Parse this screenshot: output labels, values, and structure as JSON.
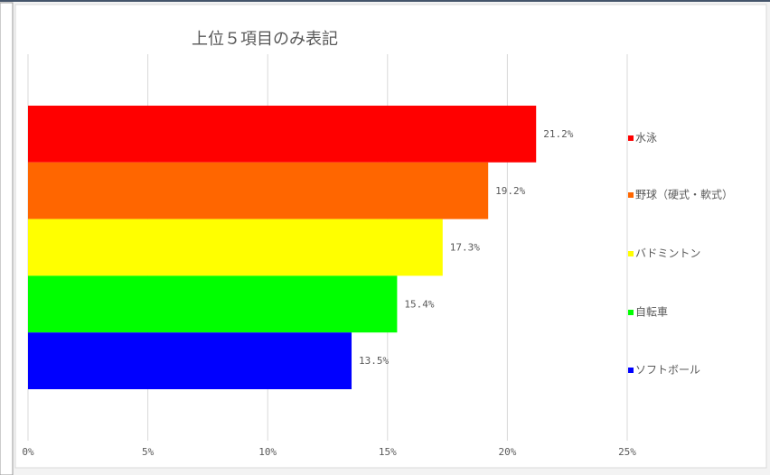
{
  "chart_data": {
    "type": "bar",
    "orientation": "horizontal",
    "title": "上位５項目のみ表記",
    "categories": [
      "水泳",
      "野球（硬式・軟式）",
      "バドミントン",
      "自転車",
      "ソフトボール"
    ],
    "values": [
      21.2,
      19.2,
      17.3,
      15.4,
      13.5
    ],
    "value_labels": [
      "21.2%",
      "19.2%",
      "17.3%",
      "15.4%",
      "13.5%"
    ],
    "colors": [
      "#ff0000",
      "#ff6600",
      "#ffff00",
      "#00ff00",
      "#0000ff"
    ],
    "xlim": [
      0,
      25
    ],
    "xticks": [
      {
        "value": 0,
        "label": "0%"
      },
      {
        "value": 5,
        "label": "5%"
      },
      {
        "value": 10,
        "label": "10%"
      },
      {
        "value": 15,
        "label": "15%"
      },
      {
        "value": 20,
        "label": "20%"
      },
      {
        "value": 25,
        "label": "25%"
      }
    ],
    "grid": true,
    "legend": "right"
  }
}
